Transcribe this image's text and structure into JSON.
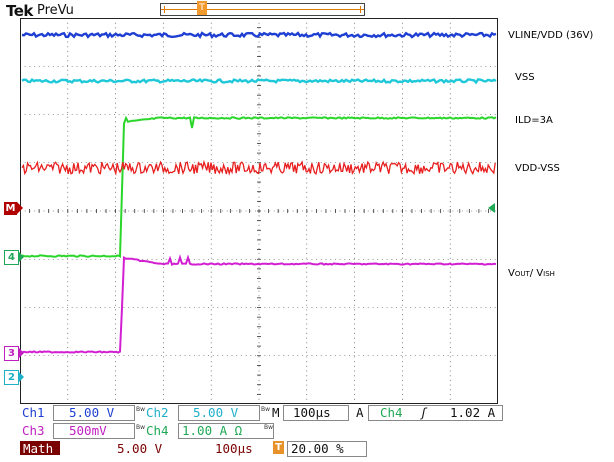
{
  "header": {
    "brand": "Tek",
    "mode": "PreVu",
    "overview_marker": "T"
  },
  "colors": {
    "ch1": "#1f3fd2",
    "ch2": "#1fc8d8",
    "ch3": "#d21fd2",
    "ch4": "#2ad62a",
    "math": "#e81f1f",
    "trigger": "#e8922a",
    "grid_bg": "#ffffff"
  },
  "icons": {
    "trigger_position": "trigger-position-icon",
    "trigger_level": "trigger-level-arrow-icon",
    "slope": "rising-edge-icon"
  },
  "traces": {
    "ch1_label": "VLINE/VDD (36V)",
    "ch2_label": "VSS",
    "ch4_label": "ILD=3A",
    "math_label": "VDD-VSS",
    "ch3_label_parts": [
      "V",
      "OUT",
      "/ V",
      "ISH"
    ]
  },
  "markers": {
    "math": "M",
    "ch4": "4",
    "ch3": "3",
    "ch2": "2"
  },
  "readouts": {
    "ch1_name": "Ch1",
    "ch1_scale": "5.00 V",
    "ch2_name": "Ch2",
    "ch2_scale": "5.00 V",
    "ch3_name": "Ch3",
    "ch3_scale": "500mV",
    "ch4_name": "Ch4",
    "ch4_scale": "1.00 A Ω",
    "bw_mark": "Bw",
    "time_prefix": "M",
    "timebase": "100µs",
    "trigger_prefix": "A",
    "trigger_source": "Ch4",
    "trigger_slope": "ʃ",
    "trigger_level": "1.02 A",
    "math_name": "Math",
    "math_scale": "5.00 V",
    "math_time": "100µs",
    "trigger_pos_mark": "T",
    "trigger_pos": "20.00 %"
  }
}
